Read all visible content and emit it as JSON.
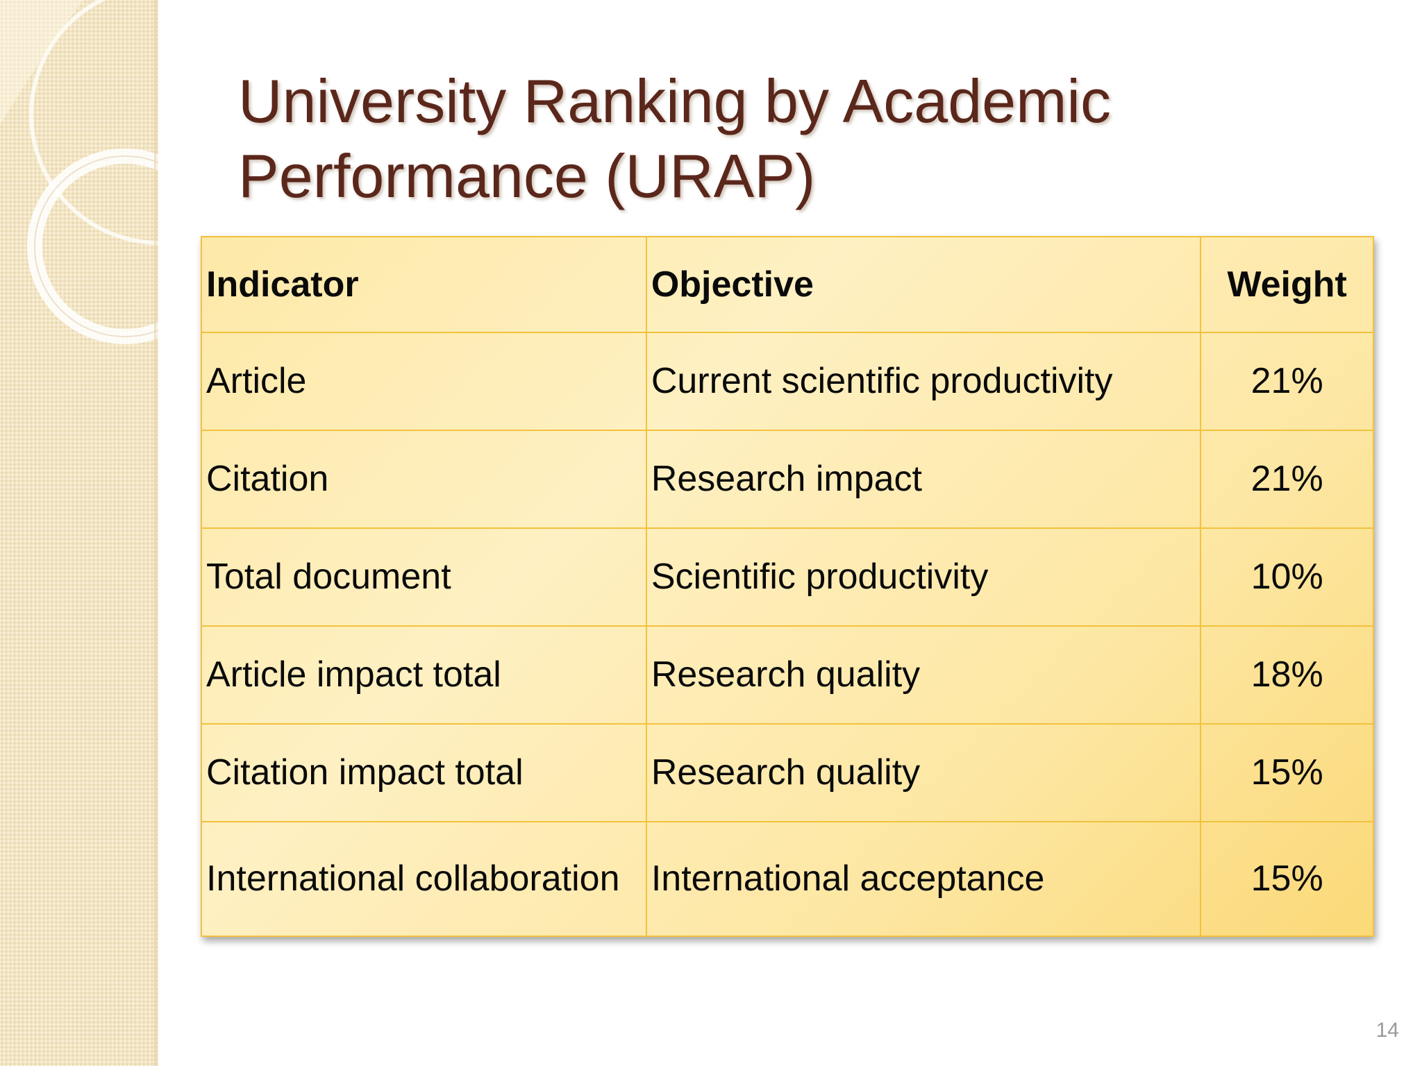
{
  "slide": {
    "title_line1": "University Ranking by Academic",
    "title_line2": "Performance (URAP)",
    "page_number": "14"
  },
  "table": {
    "headers": {
      "indicator": "Indicator",
      "objective": "Objective",
      "weight": "Weight"
    },
    "rows": [
      {
        "indicator": "Article",
        "objective": "Current scientific productivity",
        "weight": "21%"
      },
      {
        "indicator": "Citation",
        "objective": "Research impact",
        "weight": "21%"
      },
      {
        "indicator": "Total document",
        "objective": "Scientific productivity",
        "weight": "10%"
      },
      {
        "indicator": "Article impact total",
        "objective": "Research quality",
        "weight": "18%"
      },
      {
        "indicator": "Citation impact total",
        "objective": "Research quality",
        "weight": "15%"
      },
      {
        "indicator": "International collaboration",
        "objective": "International acceptance",
        "weight": "15%"
      }
    ]
  },
  "colors": {
    "title": "#5b271b",
    "table_fill": "#fde9a8",
    "table_border": "#f2c23c",
    "side_band": "#f3e6c6"
  }
}
